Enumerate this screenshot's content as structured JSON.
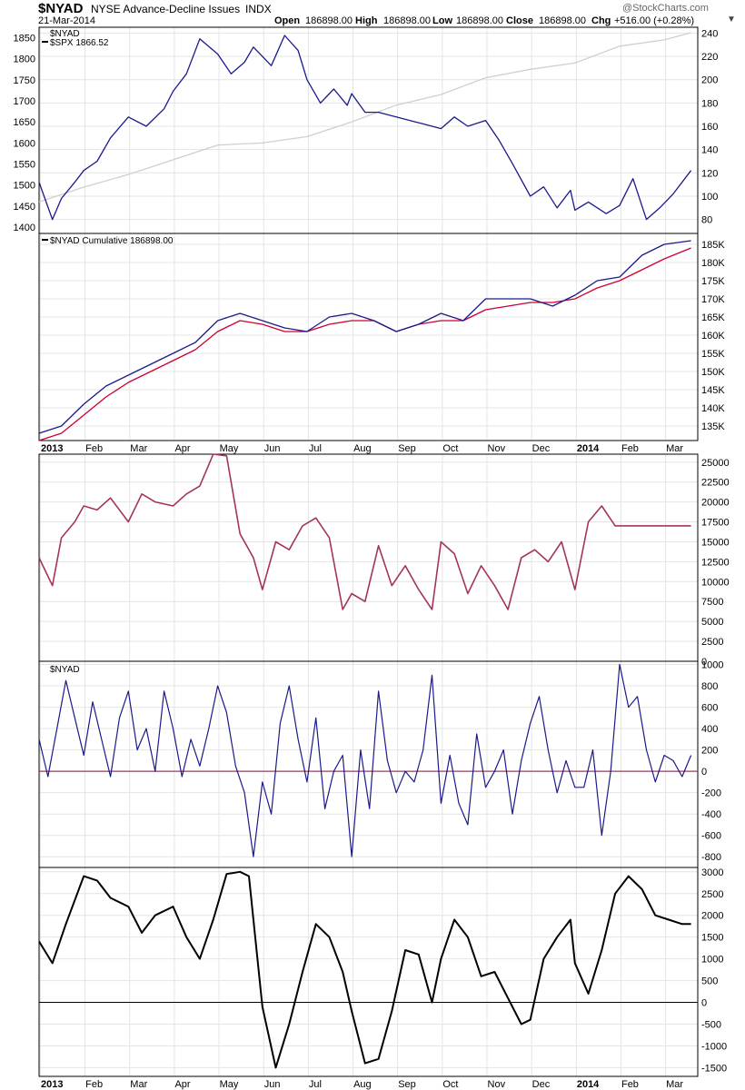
{
  "header": {
    "symbol": "$NYAD",
    "name": "NYSE Advance-Decline Issues",
    "exchange": "INDX",
    "date": "21-Mar-2014",
    "open_label": "Open",
    "open_value": "186898.00",
    "high_label": "High",
    "high_value": "186898.00",
    "low_label": "Low",
    "low_value": "186898.00",
    "close_label": "Close",
    "close_value": "186898.00",
    "chg_label": "Chg",
    "chg_value": "+516.00 (+0.28%)",
    "watermark": "@StockCharts.com"
  },
  "colors": {
    "navy": "#1a1a8c",
    "crimson": "#cc0033",
    "maroon": "#a33460",
    "black": "#000000",
    "spx_gray": "#cfcfcf",
    "grid": "#e4e4e4"
  },
  "chart_data": [
    {
      "type": "line",
      "legend": [
        "$NYAD",
        "$SPX 1866.52"
      ],
      "left_ticks": [
        1400,
        1450,
        1500,
        1550,
        1600,
        1650,
        1700,
        1750,
        1800,
        1850
      ],
      "right_ticks": [
        80,
        100,
        120,
        140,
        160,
        180,
        200,
        220,
        240
      ],
      "ylim_left": [
        1385,
        1875
      ],
      "ylim_right": [
        68,
        245
      ],
      "series": [
        {
          "name": "$NYAD",
          "axis": "right",
          "x": [
            0,
            0.3,
            0.5,
            0.8,
            1,
            1.3,
            1.6,
            2,
            2.4,
            2.8,
            3,
            3.3,
            3.6,
            4,
            4.3,
            4.6,
            4.8,
            5,
            5.2,
            5.5,
            5.8,
            6,
            6.3,
            6.6,
            6.9,
            7,
            7.3,
            7.6,
            8,
            8.3,
            8.6,
            9,
            9.3,
            9.6,
            10,
            10.3,
            10.6,
            11,
            11.3,
            11.6,
            11.9,
            12,
            12.3,
            12.7,
            13,
            13.3,
            13.6,
            13.9,
            14.2,
            14.6
          ],
          "y": [
            112,
            80,
            98,
            112,
            122,
            130,
            150,
            168,
            160,
            175,
            190,
            205,
            235,
            222,
            205,
            215,
            228,
            220,
            212,
            238,
            225,
            200,
            180,
            192,
            178,
            188,
            172,
            172,
            168,
            165,
            162,
            158,
            168,
            160,
            165,
            148,
            128,
            100,
            108,
            90,
            105,
            88,
            95,
            85,
            92,
            115,
            80,
            90,
            102,
            122
          ]
        },
        {
          "name": "$SPX 1866.52",
          "axis": "left",
          "x": [
            0,
            1,
            2,
            3,
            4,
            5,
            6,
            7,
            8,
            9,
            10,
            11,
            12,
            13,
            14,
            14.6
          ],
          "y": [
            1460,
            1495,
            1525,
            1560,
            1595,
            1600,
            1615,
            1650,
            1690,
            1715,
            1755,
            1775,
            1790,
            1830,
            1845,
            1862
          ]
        }
      ]
    },
    {
      "type": "line",
      "legend": [
        "$NYAD Cumulative 186898.00"
      ],
      "right_ticks": [
        "135K",
        "140K",
        "145K",
        "150K",
        "155K",
        "160K",
        "165K",
        "170K",
        "175K",
        "180K",
        "185K"
      ],
      "ylim": [
        131,
        188
      ],
      "series": [
        {
          "name": "$NYAD Cumulative 186898.00",
          "x": [
            0,
            0.5,
            1,
            1.5,
            2,
            2.5,
            3,
            3.5,
            4,
            4.5,
            5,
            5.5,
            6,
            6.5,
            7,
            7.5,
            8,
            8.5,
            9,
            9.5,
            10,
            10.5,
            11,
            11.5,
            12,
            12.5,
            13,
            13.5,
            14,
            14.6
          ],
          "y": [
            133,
            135,
            141,
            146,
            149,
            152,
            155,
            158,
            164,
            166,
            164,
            162,
            161,
            165,
            166,
            164,
            161,
            163,
            166,
            164,
            170,
            170,
            170,
            168,
            171,
            175,
            176,
            182,
            185,
            186
          ]
        },
        {
          "name": "",
          "x": [
            0,
            0.5,
            1,
            1.5,
            2,
            2.5,
            3,
            3.5,
            4,
            4.5,
            5,
            5.5,
            6,
            6.5,
            7,
            7.5,
            8,
            8.5,
            9,
            9.5,
            10,
            10.5,
            11,
            11.5,
            12,
            12.5,
            13,
            13.5,
            14,
            14.6
          ],
          "y": [
            131,
            133,
            138,
            143,
            147,
            150,
            153,
            156,
            161,
            164,
            163,
            161,
            161,
            163,
            164,
            164,
            161,
            163,
            164,
            164,
            167,
            168,
            169,
            169,
            170,
            173,
            175,
            178,
            181,
            184
          ]
        }
      ]
    },
    {
      "type": "line",
      "right_ticks": [
        0,
        2500,
        5000,
        7500,
        10000,
        12500,
        15000,
        17500,
        20000,
        22500,
        25000
      ],
      "ylim": [
        0,
        26000
      ],
      "series": [
        {
          "name": "",
          "x": [
            0,
            0.3,
            0.5,
            0.8,
            1,
            1.3,
            1.6,
            2,
            2.3,
            2.6,
            3,
            3.3,
            3.6,
            3.9,
            4.2,
            4.5,
            4.8,
            5,
            5.3,
            5.6,
            5.9,
            6.2,
            6.5,
            6.8,
            7,
            7.3,
            7.6,
            7.9,
            8.2,
            8.5,
            8.8,
            9,
            9.3,
            9.6,
            9.9,
            10.2,
            10.5,
            10.8,
            11.1,
            11.4,
            11.7,
            12,
            12.3,
            12.6,
            12.9,
            13.2,
            13.5,
            13.8,
            14.1,
            14.4,
            14.6
          ],
          "y": [
            13000,
            9500,
            15500,
            17500,
            19500,
            19000,
            20500,
            17500,
            21000,
            20000,
            19500,
            21000,
            22000,
            26000,
            25800,
            16000,
            13000,
            9000,
            15000,
            14000,
            17000,
            18000,
            15500,
            6500,
            8500,
            7500,
            14500,
            9500,
            12000,
            9000,
            6500,
            15000,
            13500,
            8500,
            12000,
            9500,
            6500,
            13000,
            14000,
            12500,
            15000,
            9000,
            17500,
            19500,
            17000,
            17000,
            17000,
            17000,
            17000,
            17000,
            17000
          ]
        }
      ]
    },
    {
      "type": "line",
      "legend": [
        "$NYAD"
      ],
      "right_ticks": [
        -800,
        -600,
        -400,
        -200,
        0,
        200,
        400,
        600,
        800,
        1000
      ],
      "ylim": [
        -900,
        1030
      ],
      "series": [
        {
          "name": "$NYAD",
          "x": [
            0,
            0.2,
            0.4,
            0.6,
            0.8,
            1,
            1.2,
            1.4,
            1.6,
            1.8,
            2,
            2.2,
            2.4,
            2.6,
            2.8,
            3,
            3.2,
            3.4,
            3.6,
            3.8,
            4,
            4.2,
            4.4,
            4.6,
            4.8,
            5,
            5.2,
            5.4,
            5.6,
            5.8,
            6,
            6.2,
            6.4,
            6.6,
            6.8,
            7,
            7.2,
            7.4,
            7.6,
            7.8,
            8,
            8.2,
            8.4,
            8.6,
            8.8,
            9,
            9.2,
            9.4,
            9.6,
            9.8,
            10,
            10.2,
            10.4,
            10.6,
            10.8,
            11,
            11.2,
            11.4,
            11.6,
            11.8,
            12,
            12.2,
            12.4,
            12.6,
            12.8,
            13,
            13.2,
            13.4,
            13.6,
            13.8,
            14,
            14.2,
            14.4,
            14.6
          ],
          "y": [
            300,
            -50,
            400,
            850,
            500,
            150,
            650,
            300,
            -50,
            500,
            750,
            200,
            400,
            0,
            750,
            400,
            -50,
            300,
            50,
            400,
            800,
            550,
            50,
            -200,
            -800,
            -100,
            -400,
            450,
            800,
            300,
            -100,
            500,
            -350,
            0,
            150,
            -800,
            200,
            -350,
            750,
            100,
            -200,
            0,
            -100,
            200,
            900,
            -300,
            150,
            -300,
            -500,
            350,
            -150,
            0,
            200,
            -400,
            100,
            450,
            700,
            200,
            -200,
            100,
            -150,
            -150,
            200,
            -600,
            0,
            1000,
            600,
            700,
            200,
            -100,
            150,
            100,
            -50,
            150
          ]
        }
      ]
    },
    {
      "type": "line",
      "right_ticks": [
        -1500,
        -1000,
        -500,
        0,
        500,
        1000,
        1500,
        2000,
        2500,
        3000
      ],
      "ylim": [
        -1700,
        3100
      ],
      "x_ticks": [
        "2013",
        "Feb",
        "Mar",
        "Apr",
        "May",
        "Jun",
        "Jul",
        "Aug",
        "Sep",
        "Oct",
        "Nov",
        "Dec",
        "2014",
        "Feb",
        "Mar"
      ],
      "series": [
        {
          "name": "",
          "x": [
            0,
            0.3,
            0.6,
            1,
            1.3,
            1.6,
            2,
            2.3,
            2.6,
            3,
            3.3,
            3.6,
            3.9,
            4.2,
            4.5,
            4.7,
            5,
            5.3,
            5.6,
            5.9,
            6.2,
            6.5,
            6.8,
            7,
            7.3,
            7.6,
            7.9,
            8.2,
            8.5,
            8.8,
            9,
            9.3,
            9.6,
            9.9,
            10.2,
            10.5,
            10.8,
            11,
            11.3,
            11.6,
            11.9,
            12,
            12.3,
            12.6,
            12.9,
            13.2,
            13.5,
            13.8,
            14.1,
            14.4,
            14.6
          ],
          "y": [
            1400,
            900,
            1800,
            2900,
            2800,
            2400,
            2200,
            1600,
            2000,
            2200,
            1500,
            1000,
            1900,
            2950,
            3000,
            2900,
            -100,
            -1500,
            -500,
            700,
            1800,
            1500,
            700,
            -200,
            -1400,
            -1300,
            -200,
            1200,
            1100,
            0,
            1000,
            1900,
            1500,
            600,
            700,
            100,
            -500,
            -400,
            1000,
            1500,
            1900,
            900,
            200,
            1200,
            2500,
            2900,
            2600,
            2000,
            1900,
            1800,
            1800
          ]
        }
      ]
    }
  ]
}
